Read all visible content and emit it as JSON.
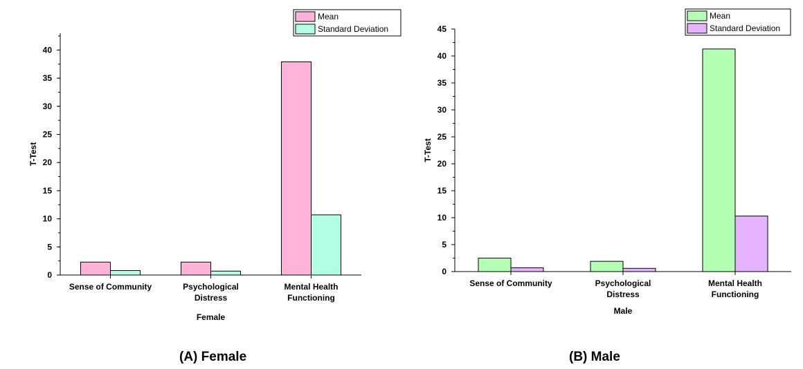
{
  "chart_data": [
    {
      "type": "bar",
      "panel_caption": "(A) Female",
      "categories": [
        [
          "Sense of Community"
        ],
        [
          "Psychological",
          "Distress"
        ],
        [
          "Mental Health",
          "Functioning"
        ]
      ],
      "series": [
        {
          "name": "Mean",
          "values": [
            2.3,
            2.3,
            37.9
          ],
          "color": "#ffb3d9"
        },
        {
          "name": "Standard Deviation",
          "values": [
            0.8,
            0.7,
            10.7
          ],
          "color": "#b3ffe6"
        }
      ],
      "xlabel": "Female",
      "ylabel": "T-Test",
      "ylim": [
        0,
        43
      ],
      "yticks": [
        0,
        5,
        10,
        15,
        20,
        25,
        30,
        35,
        40
      ],
      "grid": false,
      "legend_position": "top-right"
    },
    {
      "type": "bar",
      "panel_caption": "(B) Male",
      "categories": [
        [
          "Sense of Community"
        ],
        [
          "Psychological",
          "Distress"
        ],
        [
          "Mental Health",
          "Functioning"
        ]
      ],
      "series": [
        {
          "name": "Mean",
          "values": [
            2.5,
            1.9,
            41.3
          ],
          "color": "#b3ffb3"
        },
        {
          "name": "Standard Deviation",
          "values": [
            0.7,
            0.6,
            10.3
          ],
          "color": "#e6b3ff"
        }
      ],
      "xlabel": "Male",
      "ylabel": "T-Test",
      "ylim": [
        0,
        45
      ],
      "yticks": [
        0,
        5,
        10,
        15,
        20,
        25,
        30,
        35,
        40,
        45
      ],
      "grid": false,
      "legend_position": "top-right"
    }
  ]
}
